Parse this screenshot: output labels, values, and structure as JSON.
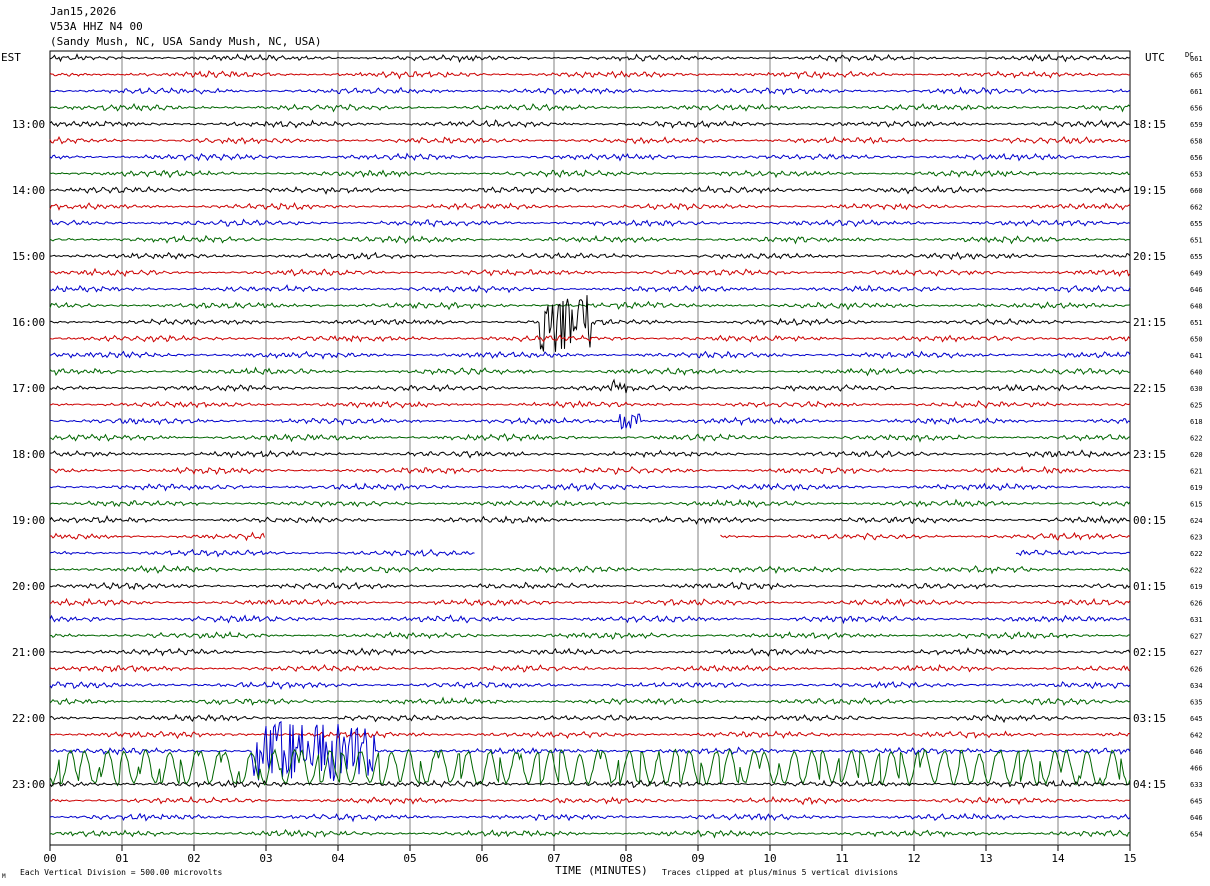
{
  "header": {
    "date": "Jan15,2026",
    "station": "V53A HHZ N4 00",
    "location": "(Sandy Mush, NC, USA Sandy Mush, NC, USA)"
  },
  "labels": {
    "left_tz": "EST",
    "right_tz": "UTC",
    "dc": "DC",
    "xlabel": "TIME (MINUTES)",
    "footer_left": "Each Vertical Division =  500.00 microvolts",
    "footer_right": "Traces clipped at plus/minus 5 vertical divisions",
    "corner_mark": "M"
  },
  "colors": {
    "cycle": [
      "#000000",
      "#cc0000",
      "#0000cc",
      "#006600"
    ],
    "grid": "#808080"
  },
  "chart_data": {
    "type": "line",
    "title": "V53A HHZ N4 00",
    "xlabel": "TIME (MINUTES)",
    "x_ticks": [
      "00",
      "01",
      "02",
      "03",
      "04",
      "05",
      "06",
      "07",
      "08",
      "09",
      "10",
      "11",
      "12",
      "13",
      "14",
      "15"
    ],
    "xlim": [
      0,
      15
    ],
    "traces_per_hour": 4,
    "minutes_per_trace": 15,
    "est_hour_labels": [
      "13:00",
      "14:00",
      "15:00",
      "16:00",
      "17:00",
      "18:00",
      "19:00",
      "20:00",
      "21:00",
      "22:00",
      "23:00"
    ],
    "utc_hour_labels": [
      "18:15",
      "19:15",
      "20:15",
      "21:15",
      "22:15",
      "23:15",
      "00:15",
      "01:15",
      "02:15",
      "03:15",
      "04:15"
    ],
    "dc_offsets": [
      "661",
      "665",
      "661",
      "656",
      "659",
      "658",
      "656",
      "653",
      "660",
      "662",
      "655",
      "651",
      "655",
      "649",
      "646",
      "648",
      "651",
      "650",
      "641",
      "640",
      "630",
      "625",
      "618",
      "622",
      "620",
      "621",
      "619",
      "615",
      "624",
      "623",
      "622",
      "622",
      "619",
      "626",
      "631",
      "627",
      "627",
      "626",
      "634",
      "635",
      "645",
      "642",
      "646",
      "466",
      "633",
      "645",
      "646",
      "654"
    ],
    "events": [
      {
        "trace": 16,
        "start_min": 6.8,
        "end_min": 7.5,
        "amplitude": "high"
      },
      {
        "trace": 20,
        "start_min": 7.8,
        "end_min": 8.0,
        "amplitude": "medium"
      },
      {
        "trace": 22,
        "start_min": 7.9,
        "end_min": 8.2,
        "amplitude": "medium"
      },
      {
        "trace": 42,
        "start_min": 2.8,
        "end_min": 4.5,
        "amplitude": "high"
      },
      {
        "trace": 43,
        "start_min": 0.0,
        "end_min": 15.0,
        "amplitude": "clipped"
      }
    ],
    "gaps": [
      {
        "trace": 29,
        "start_min": 3.0,
        "end_min": 9.3
      },
      {
        "trace": 30,
        "start_min": 5.9,
        "end_min": 13.4
      }
    ],
    "amplitude_scale": "500.00 microvolts per vertical division",
    "clip": "plus/minus 5 vertical divisions"
  }
}
